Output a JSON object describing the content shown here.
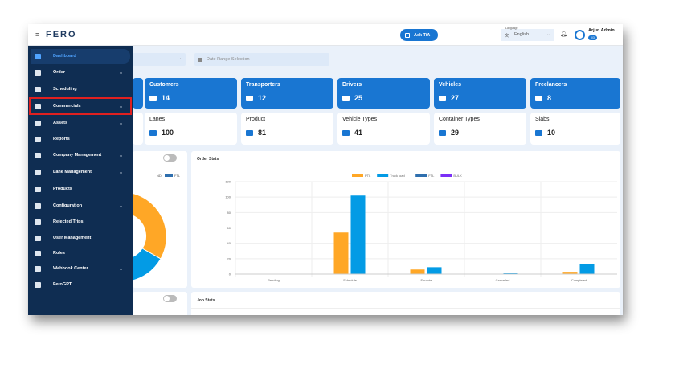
{
  "header": {
    "logo": "FERO",
    "ask_button": "Ask TiA",
    "language_label": "Language",
    "language_value": "English",
    "user_name": "Arjun Admin",
    "user_badge": "0/3"
  },
  "filters": {
    "select_value": "",
    "date_range_placeholder": "Date Range Selection"
  },
  "sidebar": {
    "items": [
      {
        "label": "Dashboard",
        "icon": "dashboard-icon",
        "chevron": false,
        "active": true
      },
      {
        "label": "Order",
        "icon": "order-icon",
        "chevron": true
      },
      {
        "label": "Scheduling",
        "icon": "scheduling-icon",
        "chevron": false
      },
      {
        "label": "Commercials",
        "icon": "commercials-icon",
        "chevron": true,
        "highlighted": true
      },
      {
        "label": "Assets",
        "icon": "assets-icon",
        "chevron": true
      },
      {
        "label": "Reports",
        "icon": "reports-icon",
        "chevron": false
      },
      {
        "label": "Company Management",
        "icon": "company-icon",
        "chevron": true
      },
      {
        "label": "Lane Management",
        "icon": "lane-icon",
        "chevron": true
      },
      {
        "label": "Products",
        "icon": "products-icon",
        "chevron": false
      },
      {
        "label": "Configuration",
        "icon": "gear-icon",
        "chevron": true
      },
      {
        "label": "Rejected Trips",
        "icon": "rejected-icon",
        "chevron": false
      },
      {
        "label": "User Management",
        "icon": "users-icon",
        "chevron": false
      },
      {
        "label": "Roles",
        "icon": "roles-icon",
        "chevron": false
      },
      {
        "label": "Webhook Center",
        "icon": "webhook-icon",
        "chevron": true
      },
      {
        "label": "FeroGPT",
        "icon": "cloud-icon",
        "chevron": false
      }
    ]
  },
  "stats_row1": [
    {
      "label": "Customers",
      "value": "14",
      "icon": "warehouse-icon"
    },
    {
      "label": "Transporters",
      "value": "12",
      "icon": "transporter-icon"
    },
    {
      "label": "Drivers",
      "value": "25",
      "icon": "driver-icon"
    },
    {
      "label": "Vehicles",
      "value": "27",
      "icon": "truck-icon"
    },
    {
      "label": "Freelancers",
      "value": "8",
      "icon": "freelancer-icon"
    }
  ],
  "stats_row2": [
    {
      "label": "Lanes",
      "value": "100",
      "icon": "lanes-icon"
    },
    {
      "label": "Product",
      "value": "81",
      "icon": "product-icon"
    },
    {
      "label": "Vehicle Types",
      "value": "41",
      "icon": "truck-icon"
    },
    {
      "label": "Container Types",
      "value": "29",
      "icon": "container-icon"
    },
    {
      "label": "Slabs",
      "value": "10",
      "icon": "slabs-icon"
    }
  ],
  "donut": {
    "legend_partial": [
      "ND",
      "FTL"
    ]
  },
  "job_stats": {
    "title": "Job Stats"
  },
  "colors": {
    "sidebar": "#0f2d52",
    "primary": "#1976d2",
    "ptl": "#ffa726",
    "truck_load": "#039be5",
    "ftl": "#2f6fae",
    "bulk": "#7b2ff7"
  },
  "chart_data": {
    "type": "bar",
    "title": "Order Stats",
    "categories": [
      "Pending",
      "Schedule",
      "Enroute",
      "Cancelled",
      "Completed"
    ],
    "series": [
      {
        "name": "PTL",
        "values": [
          0,
          54,
          6,
          0,
          3
        ]
      },
      {
        "name": "Truck load",
        "values": [
          0,
          102,
          9,
          1,
          13
        ]
      },
      {
        "name": "FTL",
        "values": [
          0,
          0,
          0,
          0,
          0
        ]
      },
      {
        "name": "BULK",
        "values": [
          0,
          0,
          0,
          0,
          0
        ]
      }
    ],
    "ylim": [
      0,
      120
    ],
    "yticks": [
      0,
      20,
      40,
      60,
      80,
      100,
      120
    ],
    "grid": true,
    "legend": "top-center"
  }
}
